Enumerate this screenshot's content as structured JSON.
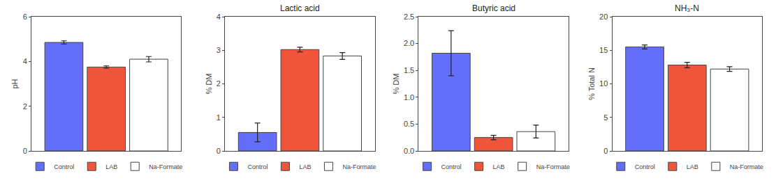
{
  "chart_data": [
    {
      "type": "bar",
      "ylabel": "pH",
      "categories": [
        null
      ],
      "series": [
        {
          "name": "Control",
          "values": [
            4.85
          ],
          "errors": [
            0.07
          ]
        },
        {
          "name": "LAB",
          "values": [
            3.75
          ],
          "errors": [
            0.05
          ]
        },
        {
          "name": "Na-Formate",
          "values": [
            4.1
          ],
          "errors": [
            0.12
          ],
          "marker": "hatch"
        }
      ],
      "ylim": [
        0,
        6
      ],
      "yticks": [
        0,
        2,
        4,
        6
      ],
      "tick_labels": "y",
      "legend": "bottom",
      "grid": false
    },
    {
      "type": "bar",
      "title": "Lactic acid",
      "ylabel": "% DM",
      "categories": [
        null
      ],
      "series": [
        {
          "name": "Control",
          "values": [
            0.55
          ],
          "errors": [
            0.28
          ]
        },
        {
          "name": "LAB",
          "values": [
            3.02
          ],
          "errors": [
            0.07
          ]
        },
        {
          "name": "Na-Formate",
          "values": [
            2.83
          ],
          "errors": [
            0.1
          ],
          "marker": "hatch"
        }
      ],
      "ylim": [
        0,
        4
      ],
      "yticks": [
        0,
        1,
        2,
        3,
        4
      ],
      "tick_labels": "y",
      "legend": "bottom",
      "grid": false
    },
    {
      "type": "bar",
      "title": "Butyric acid",
      "ylabel": "% DM",
      "categories": [
        null
      ],
      "series": [
        {
          "name": "Control",
          "values": [
            1.82
          ],
          "errors": [
            0.42
          ]
        },
        {
          "name": "LAB",
          "values": [
            0.25
          ],
          "errors": [
            0.04
          ]
        },
        {
          "name": "Na-Formate",
          "values": [
            0.36
          ],
          "errors": [
            0.12
          ],
          "marker": "hatch"
        }
      ],
      "ylim": [
        0,
        2.5
      ],
      "yticks": [
        {
          "value": 0,
          "label": "0.0"
        },
        0.5,
        {
          "value": 1,
          "label": "1.0"
        },
        1.5,
        {
          "value": 2,
          "label": "2.0"
        },
        2.5
      ],
      "tick_labels": "y",
      "legend": "bottom",
      "grid": false
    },
    {
      "type": "bar",
      "title": "NH₃-N",
      "ylabel": "% Total N",
      "categories": [
        null
      ],
      "series": [
        {
          "name": "Control",
          "values": [
            15.5
          ],
          "errors": [
            0.3
          ]
        },
        {
          "name": "LAB",
          "values": [
            12.8
          ],
          "errors": [
            0.4
          ]
        },
        {
          "name": "Na-Formate",
          "values": [
            12.2
          ],
          "errors": [
            0.35
          ],
          "marker": "hatch"
        }
      ],
      "ylim": [
        0,
        20
      ],
      "yticks": [
        0,
        5,
        10,
        15,
        20
      ],
      "tick_labels": "y",
      "legend": "bottom",
      "grid": false
    }
  ]
}
